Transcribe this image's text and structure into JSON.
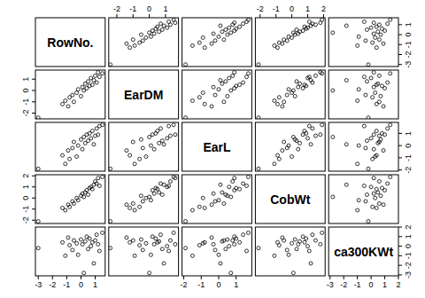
{
  "chart_data": {
    "type": "scatter_matrix",
    "marker": "circle",
    "color": "#000000",
    "variables": [
      {
        "name": "RowNo.",
        "lim": [
          -3.2,
          1.7
        ],
        "ticks": [
          -3,
          -2,
          -1,
          0,
          1
        ],
        "values": [
          -3.0,
          -1.3,
          -1.1,
          -0.9,
          -0.8,
          -0.6,
          -0.5,
          -0.3,
          -0.2,
          0.0,
          0.1,
          0.2,
          0.3,
          0.4,
          0.5,
          0.6,
          0.7,
          0.8,
          0.9,
          1.0,
          1.1,
          1.2,
          1.3,
          1.5
        ]
      },
      {
        "name": "EarDM",
        "lim": [
          -2.5,
          1.8
        ],
        "ticks": [
          -2,
          -1,
          0,
          1
        ],
        "values": [
          -2.4,
          -1.2,
          -0.9,
          -1.4,
          -0.6,
          -0.4,
          -1.0,
          -0.2,
          0.1,
          -0.5,
          0.3,
          0.0,
          0.6,
          0.2,
          0.8,
          0.4,
          1.1,
          0.5,
          0.9,
          1.3,
          0.7,
          1.6,
          1.2,
          1.5
        ]
      },
      {
        "name": "EarL",
        "lim": [
          -2.1,
          1.9
        ],
        "ticks": [
          -2,
          -1,
          0,
          1
        ],
        "values": [
          -1.9,
          -0.8,
          -1.5,
          -0.4,
          -1.1,
          -0.2,
          0.3,
          -0.9,
          0.0,
          0.5,
          -0.3,
          0.7,
          0.2,
          0.9,
          0.4,
          1.0,
          0.6,
          1.2,
          0.1,
          0.8,
          1.4,
          0.9,
          1.6,
          1.7
        ]
      },
      {
        "name": "CobWt",
        "lim": [
          -2.3,
          2.1
        ],
        "ticks": [
          -2,
          -1,
          0,
          1,
          2
        ],
        "values": [
          -2.1,
          -0.9,
          -1.1,
          -0.6,
          -0.8,
          -0.3,
          -0.5,
          0.0,
          -0.2,
          0.2,
          0.4,
          0.1,
          0.5,
          0.7,
          0.3,
          0.9,
          1.0,
          0.8,
          1.2,
          1.5,
          1.3,
          1.8,
          1.1,
          1.9
        ]
      },
      {
        "name": "ca300KWt",
        "lim": [
          -3.1,
          2.0
        ],
        "ticks": [
          -3,
          -2,
          -1,
          0,
          1,
          2
        ],
        "values": [
          -0.2,
          0.4,
          -1.0,
          0.9,
          0.1,
          -0.4,
          0.6,
          0.3,
          -0.9,
          0.7,
          0.2,
          -2.8,
          0.5,
          1.0,
          -0.3,
          0.8,
          0.0,
          0.4,
          -1.8,
          0.6,
          1.2,
          0.2,
          -0.5,
          1.4
        ]
      }
    ]
  }
}
